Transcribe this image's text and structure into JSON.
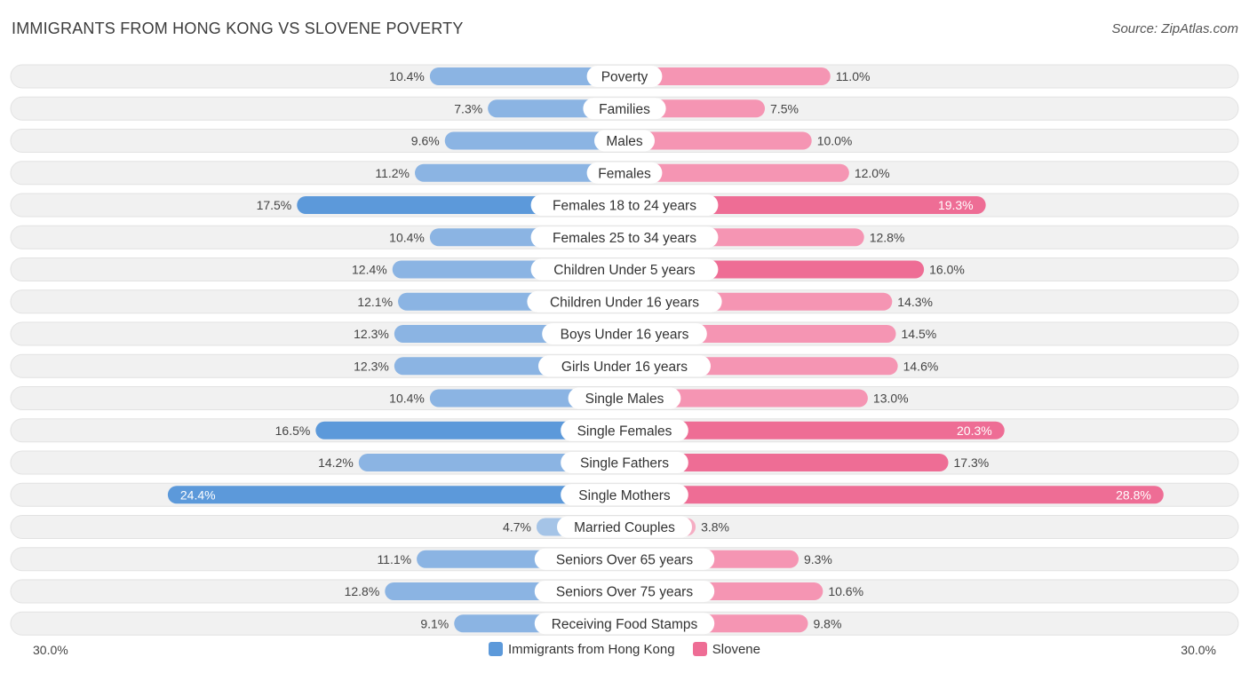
{
  "title": "IMMIGRANTS FROM HONG KONG VS SLOVENE POVERTY",
  "source": "Source: ZipAtlas.com",
  "colors": {
    "left_bar": "#8bb4e3",
    "left_bar_strong": "#5c99da",
    "right_bar": "#f595b3",
    "right_bar_strong": "#ee6d95",
    "track": "#f1f1f1"
  },
  "chart_data": {
    "type": "bar",
    "orientation": "horizontal-diverging",
    "title": "IMMIGRANTS FROM HONG KONG VS SLOVENE POVERTY",
    "xlim": [
      -30,
      30
    ],
    "axis_labels": {
      "left": "30.0%",
      "right": "30.0%"
    },
    "categories": [
      "Poverty",
      "Families",
      "Males",
      "Females",
      "Females 18 to 24 years",
      "Females 25 to 34 years",
      "Children Under 5 years",
      "Children Under 16 years",
      "Boys Under 16 years",
      "Girls Under 16 years",
      "Single Males",
      "Single Females",
      "Single Fathers",
      "Single Mothers",
      "Married Couples",
      "Seniors Over 65 years",
      "Seniors Over 75 years",
      "Receiving Food Stamps"
    ],
    "series": [
      {
        "name": "Immigrants from Hong Kong",
        "values": [
          10.4,
          7.3,
          9.6,
          11.2,
          17.5,
          10.4,
          12.4,
          12.1,
          12.3,
          12.3,
          10.4,
          16.5,
          14.2,
          24.4,
          4.7,
          11.1,
          12.8,
          9.1
        ],
        "labels": [
          "10.4%",
          "7.3%",
          "9.6%",
          "11.2%",
          "17.5%",
          "10.4%",
          "12.4%",
          "12.1%",
          "12.3%",
          "12.3%",
          "10.4%",
          "16.5%",
          "14.2%",
          "24.4%",
          "4.7%",
          "11.1%",
          "12.8%",
          "9.1%"
        ]
      },
      {
        "name": "Slovene",
        "values": [
          11.0,
          7.5,
          10.0,
          12.0,
          19.3,
          12.8,
          16.0,
          14.3,
          14.5,
          14.6,
          13.0,
          20.3,
          17.3,
          28.8,
          3.8,
          9.3,
          10.6,
          9.8
        ],
        "labels": [
          "11.0%",
          "7.5%",
          "10.0%",
          "12.0%",
          "19.3%",
          "12.8%",
          "16.0%",
          "14.3%",
          "14.5%",
          "14.6%",
          "13.0%",
          "20.3%",
          "17.3%",
          "28.8%",
          "3.8%",
          "9.3%",
          "10.6%",
          "9.8%"
        ]
      }
    ],
    "legend": [
      "Immigrants from Hong Kong",
      "Slovene"
    ],
    "legend_position": "bottom-center"
  }
}
